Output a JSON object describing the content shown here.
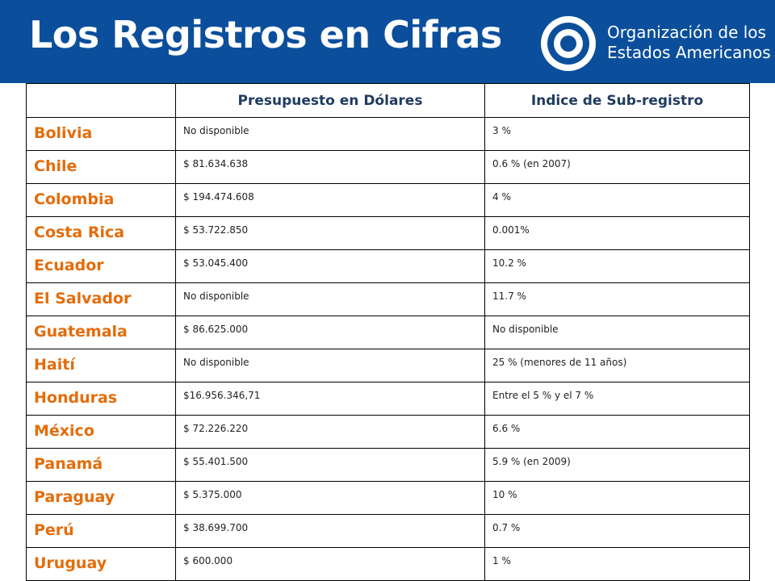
{
  "header": {
    "title": "Los Registros en Cifras",
    "org": [
      "Organización de los",
      "Estados Americanos"
    ]
  },
  "table": {
    "columns": [
      "Presupuesto en Dólares",
      "Indice de Sub-registro"
    ],
    "rows": [
      [
        "Bolivia",
        "No disponible",
        "3 %"
      ],
      [
        "Chile",
        "$ 81.634.638",
        "0.6 % (en 2007)"
      ],
      [
        "Colombia",
        "$ 194.474.608",
        "4 %"
      ],
      [
        "Costa Rica",
        "$ 53.722.850",
        "0.001%"
      ],
      [
        "Ecuador",
        "$ 53.045.400",
        "10.2 %"
      ],
      [
        "El Salvador",
        "No disponible",
        "11.7 %"
      ],
      [
        "Guatemala",
        "$ 86.625.000",
        "No disponible"
      ],
      [
        "Haití",
        "No disponible",
        "25 % (menores de 11 años)"
      ],
      [
        "Honduras",
        "$16.956.346,71",
        "Entre el 5 % y el 7 %"
      ],
      [
        "México",
        "$ 72.226.220",
        "6.6 %"
      ],
      [
        "Panamá",
        "$ 55.401.500",
        "5.9 % (en 2009)"
      ],
      [
        "Paraguay",
        "$ 5.375.000",
        "10 %"
      ],
      [
        "Perú",
        "$ 38.699.700",
        "0.7 %"
      ],
      [
        "Uruguay",
        "$ 600.000",
        "1 %"
      ]
    ]
  }
}
